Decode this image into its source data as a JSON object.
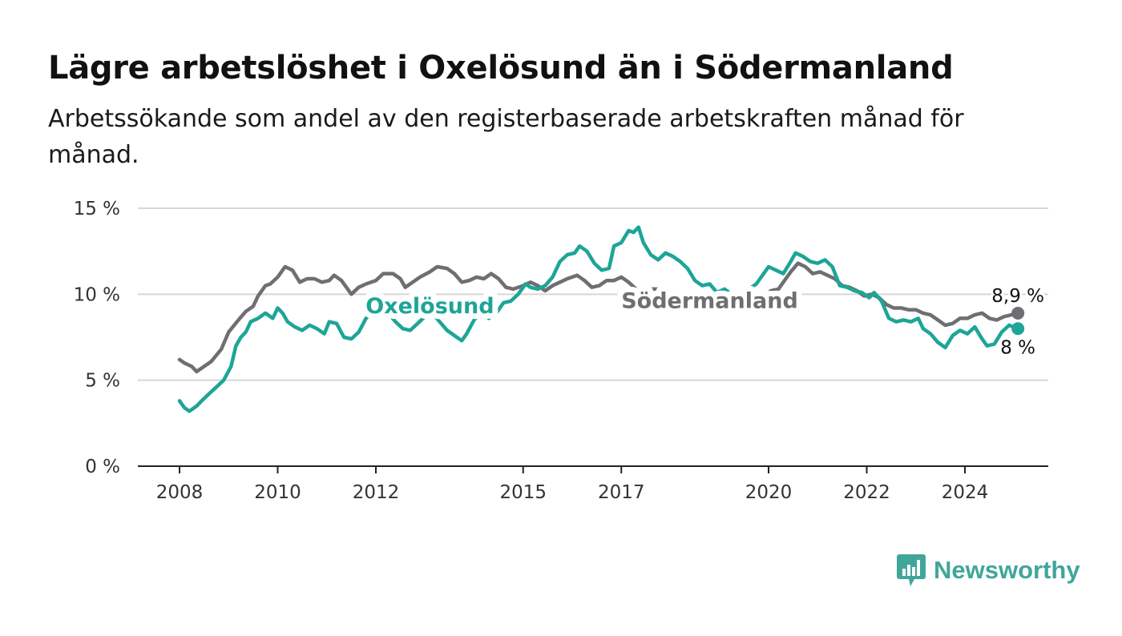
{
  "title": "Lägre arbetslöshet i Oxelösund än i Södermanland",
  "subtitle": "Arbetssökande som andel av den registerbaserade arbetskraften månad för månad.",
  "brand": {
    "name": "Newsworthy",
    "color": "#41a69a",
    "icon": "chart-speech-bubble-icon"
  },
  "chart_data": {
    "type": "line",
    "ylim": [
      0,
      15
    ],
    "xlim": [
      2008,
      2025.7
    ],
    "y_ticks": [
      {
        "value": 0,
        "label": "0 %"
      },
      {
        "value": 5,
        "label": "5 %"
      },
      {
        "value": 10,
        "label": "10 %"
      },
      {
        "value": 15,
        "label": "15 %"
      }
    ],
    "x_ticks": [
      {
        "value": 2008,
        "label": "2008"
      },
      {
        "value": 2010,
        "label": "2010"
      },
      {
        "value": 2012,
        "label": "2012"
      },
      {
        "value": 2015,
        "label": "2015"
      },
      {
        "value": 2017,
        "label": "2017"
      },
      {
        "value": 2020,
        "label": "2020"
      },
      {
        "value": 2022,
        "label": "2022"
      },
      {
        "value": 2024,
        "label": "2024"
      }
    ],
    "grid": true,
    "series": [
      {
        "name": "Södermanland",
        "color": "#6e6e73",
        "end_label": "8,9 %",
        "points": [
          [
            2008.0,
            6.2
          ],
          [
            2008.1,
            6.0
          ],
          [
            2008.25,
            5.8
          ],
          [
            2008.35,
            5.5
          ],
          [
            2008.5,
            5.8
          ],
          [
            2008.65,
            6.1
          ],
          [
            2008.85,
            6.8
          ],
          [
            2009.0,
            7.8
          ],
          [
            2009.2,
            8.5
          ],
          [
            2009.35,
            9.0
          ],
          [
            2009.5,
            9.3
          ],
          [
            2009.6,
            9.9
          ],
          [
            2009.75,
            10.5
          ],
          [
            2009.85,
            10.6
          ],
          [
            2010.0,
            11.0
          ],
          [
            2010.15,
            11.6
          ],
          [
            2010.3,
            11.4
          ],
          [
            2010.45,
            10.7
          ],
          [
            2010.6,
            10.9
          ],
          [
            2010.75,
            10.9
          ],
          [
            2010.9,
            10.7
          ],
          [
            2011.05,
            10.8
          ],
          [
            2011.15,
            11.1
          ],
          [
            2011.3,
            10.8
          ],
          [
            2011.5,
            10.0
          ],
          [
            2011.65,
            10.4
          ],
          [
            2011.8,
            10.6
          ],
          [
            2012.0,
            10.8
          ],
          [
            2012.15,
            11.2
          ],
          [
            2012.35,
            11.2
          ],
          [
            2012.5,
            10.9
          ],
          [
            2012.6,
            10.4
          ],
          [
            2012.75,
            10.7
          ],
          [
            2012.9,
            11.0
          ],
          [
            2013.1,
            11.3
          ],
          [
            2013.25,
            11.6
          ],
          [
            2013.45,
            11.5
          ],
          [
            2013.6,
            11.2
          ],
          [
            2013.75,
            10.7
          ],
          [
            2013.9,
            10.8
          ],
          [
            2014.05,
            11.0
          ],
          [
            2014.2,
            10.9
          ],
          [
            2014.35,
            11.2
          ],
          [
            2014.5,
            10.9
          ],
          [
            2014.65,
            10.4
          ],
          [
            2014.8,
            10.3
          ],
          [
            2015.0,
            10.5
          ],
          [
            2015.15,
            10.7
          ],
          [
            2015.3,
            10.5
          ],
          [
            2015.45,
            10.2
          ],
          [
            2015.6,
            10.5
          ],
          [
            2015.75,
            10.7
          ],
          [
            2015.9,
            10.9
          ],
          [
            2016.1,
            11.1
          ],
          [
            2016.25,
            10.8
          ],
          [
            2016.4,
            10.4
          ],
          [
            2016.55,
            10.5
          ],
          [
            2016.7,
            10.8
          ],
          [
            2016.85,
            10.8
          ],
          [
            2017.0,
            11.0
          ],
          [
            2017.15,
            10.7
          ],
          [
            2017.3,
            10.3
          ],
          [
            2017.45,
            10.2
          ],
          [
            2017.6,
            10.3
          ],
          [
            2017.75,
            10.3
          ],
          [
            2017.9,
            10.3
          ],
          [
            2018.05,
            10.0
          ],
          [
            2019.65,
            9.6
          ],
          [
            2019.8,
            9.8
          ],
          [
            2019.95,
            10.0
          ],
          [
            2020.05,
            10.2
          ],
          [
            2020.2,
            10.3
          ],
          [
            2020.3,
            10.7
          ],
          [
            2020.45,
            11.3
          ],
          [
            2020.6,
            11.8
          ],
          [
            2020.75,
            11.6
          ],
          [
            2020.9,
            11.2
          ],
          [
            2021.05,
            11.3
          ],
          [
            2021.2,
            11.1
          ],
          [
            2021.35,
            10.9
          ],
          [
            2021.5,
            10.5
          ],
          [
            2021.65,
            10.4
          ],
          [
            2021.8,
            10.2
          ],
          [
            2021.95,
            9.9
          ],
          [
            2022.1,
            10.0
          ],
          [
            2022.25,
            9.8
          ],
          [
            2022.4,
            9.4
          ],
          [
            2022.55,
            9.2
          ],
          [
            2022.7,
            9.2
          ],
          [
            2022.85,
            9.1
          ],
          [
            2023.0,
            9.1
          ],
          [
            2023.15,
            8.9
          ],
          [
            2023.3,
            8.8
          ],
          [
            2023.45,
            8.5
          ],
          [
            2023.6,
            8.2
          ],
          [
            2023.75,
            8.3
          ],
          [
            2023.9,
            8.6
          ],
          [
            2024.05,
            8.6
          ],
          [
            2024.2,
            8.8
          ],
          [
            2024.35,
            8.9
          ],
          [
            2024.5,
            8.6
          ],
          [
            2024.65,
            8.5
          ],
          [
            2024.8,
            8.7
          ],
          [
            2024.95,
            8.8
          ],
          [
            2025.08,
            8.9
          ]
        ]
      },
      {
        "name": "Oxelösund",
        "color": "#1da597",
        "end_label": "8 %",
        "points": [
          [
            2008.0,
            3.8
          ],
          [
            2008.1,
            3.4
          ],
          [
            2008.2,
            3.2
          ],
          [
            2008.35,
            3.5
          ],
          [
            2008.45,
            3.8
          ],
          [
            2008.6,
            4.2
          ],
          [
            2008.75,
            4.6
          ],
          [
            2008.9,
            5.0
          ],
          [
            2009.05,
            5.8
          ],
          [
            2009.15,
            7.0
          ],
          [
            2009.25,
            7.5
          ],
          [
            2009.35,
            7.8
          ],
          [
            2009.45,
            8.4
          ],
          [
            2009.6,
            8.6
          ],
          [
            2009.75,
            8.9
          ],
          [
            2009.9,
            8.6
          ],
          [
            2010.0,
            9.2
          ],
          [
            2010.1,
            8.9
          ],
          [
            2010.2,
            8.4
          ],
          [
            2010.35,
            8.1
          ],
          [
            2010.5,
            7.9
          ],
          [
            2010.65,
            8.2
          ],
          [
            2010.8,
            8.0
          ],
          [
            2010.95,
            7.7
          ],
          [
            2011.05,
            8.4
          ],
          [
            2011.2,
            8.3
          ],
          [
            2011.35,
            7.5
          ],
          [
            2011.5,
            7.4
          ],
          [
            2011.65,
            7.8
          ],
          [
            2011.8,
            8.6
          ],
          [
            2011.95,
            9.0
          ],
          [
            2012.1,
            9.2
          ],
          [
            2012.25,
            8.9
          ],
          [
            2012.4,
            8.4
          ],
          [
            2012.55,
            8.0
          ],
          [
            2012.7,
            7.9
          ],
          [
            2012.85,
            8.3
          ],
          [
            2013.0,
            8.7
          ],
          [
            2013.15,
            8.9
          ],
          [
            2013.3,
            8.4
          ],
          [
            2013.45,
            7.9
          ],
          [
            2013.6,
            7.6
          ],
          [
            2013.75,
            7.3
          ],
          [
            2013.85,
            7.7
          ],
          [
            2014.0,
            8.5
          ],
          [
            2014.15,
            9.0
          ],
          [
            2014.3,
            8.6
          ],
          [
            2014.45,
            8.9
          ],
          [
            2014.6,
            9.5
          ],
          [
            2014.75,
            9.6
          ],
          [
            2014.9,
            10.0
          ],
          [
            2015.05,
            10.6
          ],
          [
            2015.15,
            10.4
          ],
          [
            2015.3,
            10.3
          ],
          [
            2015.45,
            10.5
          ],
          [
            2015.6,
            11.0
          ],
          [
            2015.75,
            11.9
          ],
          [
            2015.9,
            12.3
          ],
          [
            2016.05,
            12.4
          ],
          [
            2016.15,
            12.8
          ],
          [
            2016.3,
            12.5
          ],
          [
            2016.45,
            11.8
          ],
          [
            2016.6,
            11.4
          ],
          [
            2016.75,
            11.5
          ],
          [
            2016.85,
            12.8
          ],
          [
            2017.0,
            13.0
          ],
          [
            2017.15,
            13.7
          ],
          [
            2017.25,
            13.6
          ],
          [
            2017.35,
            13.9
          ],
          [
            2017.45,
            13.0
          ],
          [
            2017.6,
            12.3
          ],
          [
            2017.75,
            12.0
          ],
          [
            2017.9,
            12.4
          ],
          [
            2018.05,
            12.2
          ],
          [
            2018.2,
            11.9
          ],
          [
            2018.35,
            11.5
          ],
          [
            2018.5,
            10.8
          ],
          [
            2018.65,
            10.5
          ],
          [
            2018.8,
            10.6
          ],
          [
            2018.95,
            10.1
          ],
          [
            2019.1,
            10.3
          ],
          [
            2019.25,
            10.0
          ],
          [
            2019.35,
            9.8
          ],
          [
            2019.75,
            10.6
          ],
          [
            2019.9,
            11.2
          ],
          [
            2020.0,
            11.6
          ],
          [
            2020.15,
            11.4
          ],
          [
            2020.3,
            11.2
          ],
          [
            2020.45,
            11.9
          ],
          [
            2020.55,
            12.4
          ],
          [
            2020.7,
            12.2
          ],
          [
            2020.85,
            11.9
          ],
          [
            2021.0,
            11.8
          ],
          [
            2021.15,
            12.0
          ],
          [
            2021.3,
            11.6
          ],
          [
            2021.45,
            10.5
          ],
          [
            2021.6,
            10.4
          ],
          [
            2021.75,
            10.2
          ],
          [
            2021.9,
            10.1
          ],
          [
            2022.05,
            9.8
          ],
          [
            2022.15,
            10.1
          ],
          [
            2022.3,
            9.6
          ],
          [
            2022.45,
            8.6
          ],
          [
            2022.6,
            8.4
          ],
          [
            2022.75,
            8.5
          ],
          [
            2022.9,
            8.4
          ],
          [
            2023.05,
            8.6
          ],
          [
            2023.15,
            8.0
          ],
          [
            2023.3,
            7.7
          ],
          [
            2023.45,
            7.2
          ],
          [
            2023.6,
            6.9
          ],
          [
            2023.75,
            7.6
          ],
          [
            2023.9,
            7.9
          ],
          [
            2024.05,
            7.7
          ],
          [
            2024.2,
            8.1
          ],
          [
            2024.35,
            7.4
          ],
          [
            2024.45,
            7.0
          ],
          [
            2024.6,
            7.1
          ],
          [
            2024.75,
            7.8
          ],
          [
            2024.9,
            8.2
          ],
          [
            2025.08,
            8.0
          ]
        ]
      }
    ],
    "annotations": [
      {
        "text": "Oxelösund",
        "series": "Oxelösund",
        "x": 2013.1,
        "y": 8.9
      },
      {
        "text": "Södermanland",
        "series": "Södermanland",
        "x": 2018.8,
        "y": 9.2
      }
    ]
  }
}
